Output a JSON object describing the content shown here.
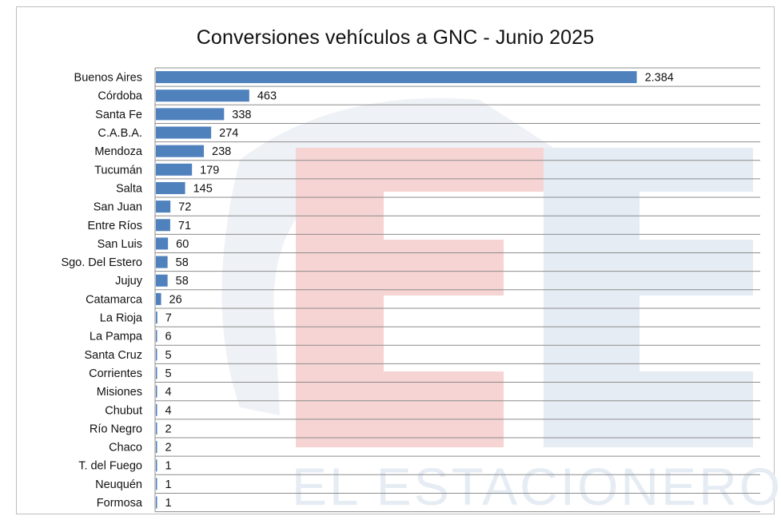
{
  "chart_data": {
    "type": "bar",
    "orientation": "horizontal",
    "title": "Conversiones vehículos a GNC - Junio 2025",
    "xlabel": "",
    "ylabel": "",
    "xlim": [
      0,
      3000
    ],
    "grid": "horizontal row separators",
    "legend": "none",
    "bar_color": "#4f81bd",
    "categories": [
      "Buenos Aires",
      "Córdoba",
      "Santa Fe",
      "C.A.B.A.",
      "Mendoza",
      "Tucumán",
      "Salta",
      "San Juan",
      "Entre Ríos",
      "San Luis",
      "Sgo. Del Estero",
      "Jujuy",
      "Catamarca",
      "La Rioja",
      "La Pampa",
      "Santa Cruz",
      "Corrientes",
      "Misiones",
      "Chubut",
      "Río Negro",
      "Chaco",
      "T. del Fuego",
      "Neuquén",
      "Formosa"
    ],
    "values": [
      2384,
      463,
      338,
      274,
      238,
      179,
      145,
      72,
      71,
      60,
      58,
      58,
      26,
      7,
      6,
      5,
      5,
      4,
      4,
      2,
      2,
      1,
      1,
      1
    ],
    "value_labels": [
      "2.384",
      "463",
      "338",
      "274",
      "238",
      "179",
      "145",
      "72",
      "71",
      "60",
      "58",
      "58",
      "26",
      "7",
      "6",
      "5",
      "5",
      "4",
      "4",
      "2",
      "2",
      "1",
      "1",
      "1"
    ]
  },
  "watermark": {
    "letters": "EE",
    "text": "EL ESTACIONERO",
    "colors": {
      "red": "#f7d4d4",
      "blue": "#e6ecf4",
      "gray": "#eef1f5"
    }
  }
}
